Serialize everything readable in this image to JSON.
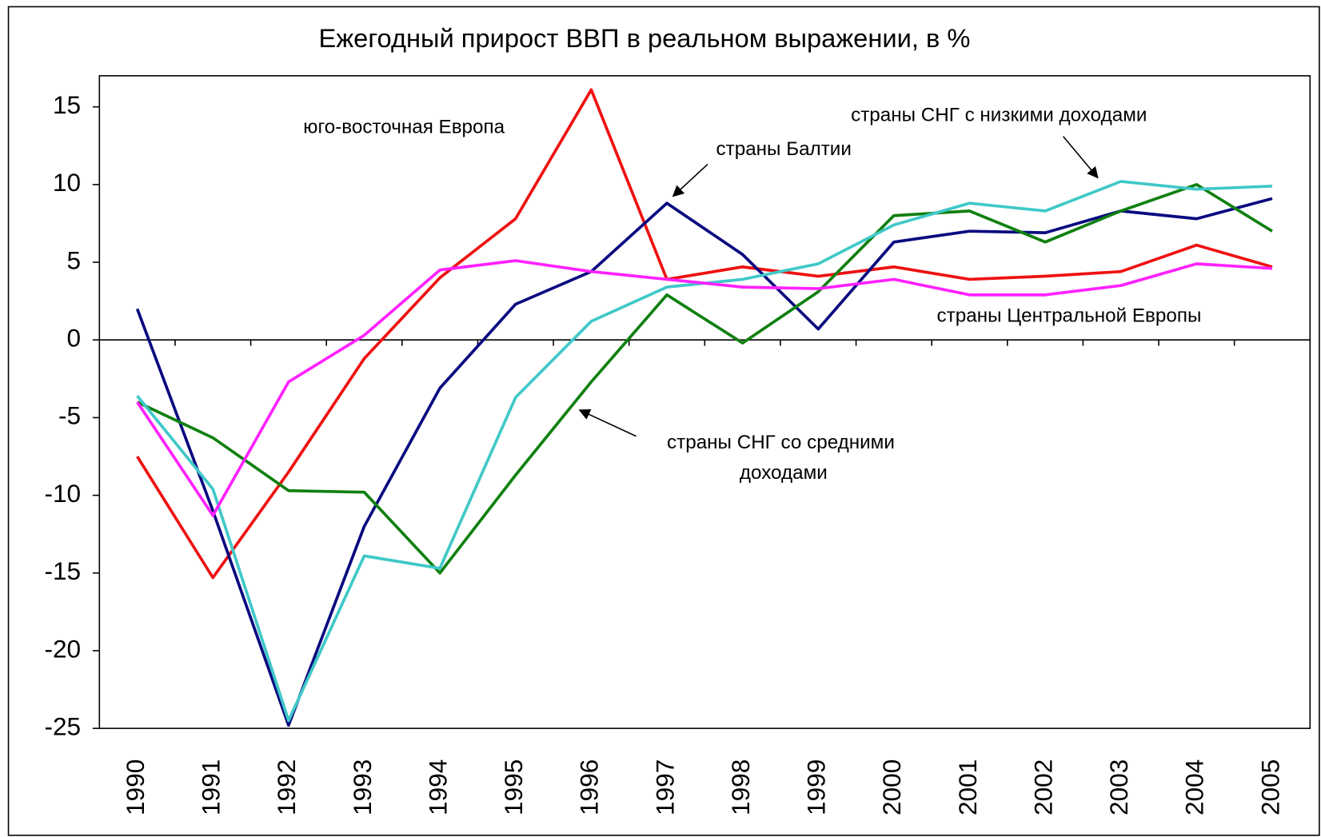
{
  "chart_data": {
    "type": "line",
    "title": "Ежегодный прирост ВВП в реальном выражении, в %",
    "categories": [
      "1990",
      "1991",
      "1992",
      "1993",
      "1994",
      "1995",
      "1996",
      "1997",
      "1998",
      "1999",
      "2000",
      "2001",
      "2002",
      "2003",
      "2004",
      "2005"
    ],
    "series": [
      {
        "name": "юго-восточная Европа",
        "color": "#ee1111",
        "values": [
          -7.5,
          -15.3,
          -8.5,
          -1.2,
          4,
          7.8,
          16.1,
          3.9,
          4.7,
          4.1,
          4.7,
          3.9,
          4.1,
          4.4,
          6.1,
          4.7
        ]
      },
      {
        "name": "страны Балтии",
        "color": "#0a0a80",
        "values": [
          2,
          -11,
          -24.8,
          -12,
          -3.1,
          2.3,
          4.4,
          8.8,
          5.5,
          0.7,
          6.3,
          7,
          6.9,
          8.3,
          7.8,
          9.1
        ]
      },
      {
        "name": "страны СНГ со средними доходами",
        "color": "#108010",
        "values": [
          -4,
          -6.3,
          -9.7,
          -9.8,
          -15,
          -8.7,
          -2.7,
          2.9,
          -0.2,
          3.1,
          8,
          8.3,
          6.3,
          8.3,
          10,
          7
        ]
      },
      {
        "name": "страны СНГ с низкими доходами",
        "color": "#40c8c8",
        "values": [
          -3.6,
          -9.6,
          -24.5,
          -13.9,
          -14.7,
          -3.7,
          1.2,
          3.4,
          3.9,
          4.9,
          7.4,
          8.8,
          8.3,
          10.2,
          9.7,
          9.9
        ]
      },
      {
        "name": "страны Центральной Европы",
        "color": "#ff22ff",
        "values": [
          -4,
          -11.3,
          -2.7,
          0.3,
          4.5,
          5.1,
          4.4,
          3.9,
          3.4,
          3.3,
          3.9,
          2.9,
          2.9,
          3.5,
          4.9,
          4.6
        ]
      }
    ],
    "ylim": [
      -25,
      17
    ],
    "yticks": [
      -25,
      -20,
      -15,
      -10,
      -5,
      0,
      5,
      10,
      15
    ],
    "grid": false
  }
}
